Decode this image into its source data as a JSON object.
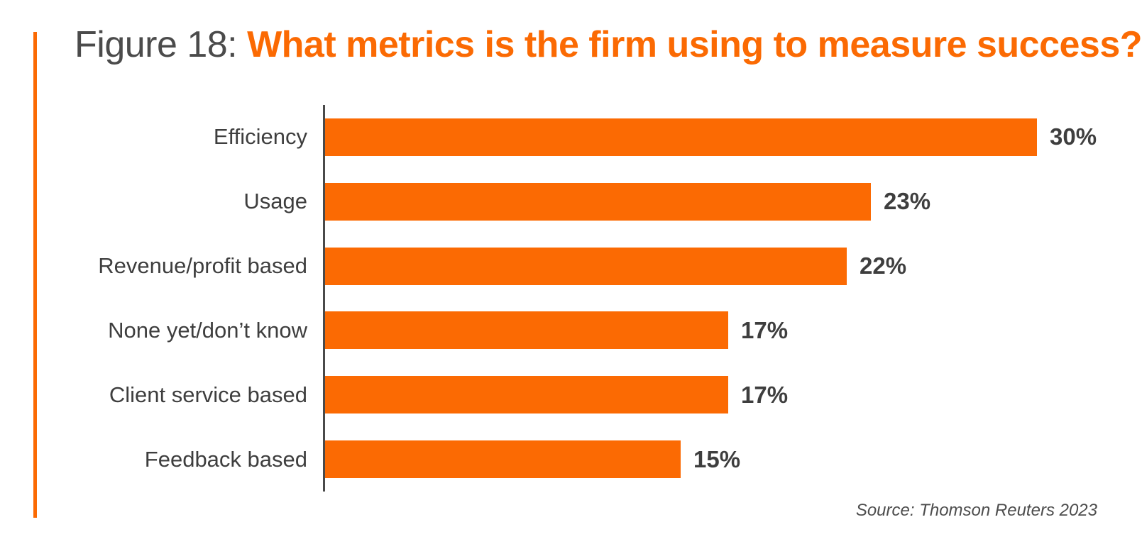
{
  "page": {
    "background_color": "#ffffff",
    "accent_color": "#FB6A03",
    "title_prefix_color": "#4B4B4B",
    "category_label_color": "#3E3E3E",
    "value_label_color": "#3E3E3E",
    "axis_line_color": "#4A4A4A",
    "source_color": "#4D4D4D"
  },
  "title": {
    "prefix": "Figure 18: ",
    "highlight": "What metrics is the firm using to measure success?"
  },
  "source": "Source: Thomson Reuters 2023",
  "chart_data": {
    "type": "bar",
    "orientation": "horizontal",
    "title": "Figure 18: What metrics is the firm using to measure success?",
    "categories": [
      "Efficiency",
      "Usage",
      "Revenue/profit based",
      "None yet/don’t know",
      "Client service based",
      "Feedback based"
    ],
    "values": [
      30,
      23,
      22,
      17,
      17,
      15
    ],
    "value_labels": [
      "30%",
      "23%",
      "22%",
      "17%",
      "17%",
      "15%"
    ],
    "xlabel": "",
    "ylabel": "",
    "xlim": [
      0,
      32
    ],
    "grid": false,
    "legend": false,
    "bar_color": "#FB6A03",
    "data_label_position": "end-of-bar"
  }
}
